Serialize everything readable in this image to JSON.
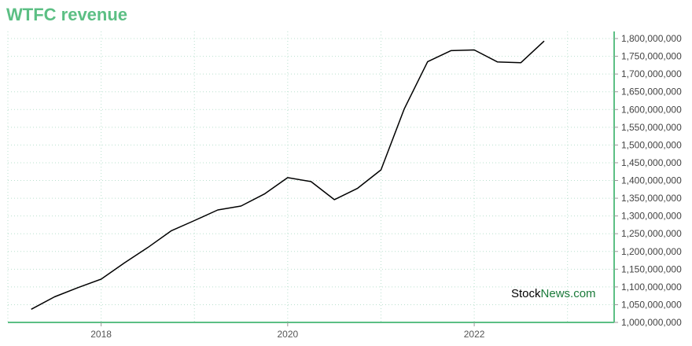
{
  "title": "WTFC revenue",
  "watermark": {
    "part1": "Stock",
    "part2": "News.com"
  },
  "colors": {
    "accent": "#5cbf84",
    "line": "#000000",
    "grid": "#b9e0ce"
  },
  "chart_data": {
    "type": "line",
    "title": "WTFC revenue",
    "xlabel": "",
    "ylabel": "",
    "grid": true,
    "y_axis_side": "right",
    "xlim": [
      2017.0,
      2023.5
    ],
    "ylim": [
      1000000000,
      1820000000
    ],
    "x_ticks": [
      {
        "value": 2018,
        "label": "2018"
      },
      {
        "value": 2020,
        "label": "2020"
      },
      {
        "value": 2022,
        "label": "2022"
      }
    ],
    "y_ticks": [
      {
        "value": 1000000000,
        "label": "1,000,000,000"
      },
      {
        "value": 1050000000,
        "label": "1,050,000,000"
      },
      {
        "value": 1100000000,
        "label": "1,100,000,000"
      },
      {
        "value": 1150000000,
        "label": "1,150,000,000"
      },
      {
        "value": 1200000000,
        "label": "1,200,000,000"
      },
      {
        "value": 1250000000,
        "label": "1,250,000,000"
      },
      {
        "value": 1300000000,
        "label": "1,300,000,000"
      },
      {
        "value": 1350000000,
        "label": "1,350,000,000"
      },
      {
        "value": 1400000000,
        "label": "1,400,000,000"
      },
      {
        "value": 1450000000,
        "label": "1,450,000,000"
      },
      {
        "value": 1500000000,
        "label": "1,500,000,000"
      },
      {
        "value": 1550000000,
        "label": "1,550,000,000"
      },
      {
        "value": 1600000000,
        "label": "1,600,000,000"
      },
      {
        "value": 1650000000,
        "label": "1,650,000,000"
      },
      {
        "value": 1700000000,
        "label": "1,700,000,000"
      },
      {
        "value": 1750000000,
        "label": "1,750,000,000"
      },
      {
        "value": 1800000000,
        "label": "1,800,000,000"
      }
    ],
    "x_grid": [
      2017.0,
      2018.0,
      2019.0,
      2020.0,
      2021.0,
      2022.0,
      2023.0
    ],
    "series": [
      {
        "name": "",
        "x": [
          2017.25,
          2017.5,
          2017.75,
          2018.0,
          2018.25,
          2018.5,
          2018.75,
          2019.0,
          2019.25,
          2019.5,
          2019.75,
          2020.0,
          2020.25,
          2020.5,
          2020.75,
          2021.0,
          2021.25,
          2021.5,
          2021.75,
          2022.0,
          2022.25,
          2022.5,
          2022.75
        ],
        "y": [
          1037000000,
          1072000000,
          1098000000,
          1122000000,
          1168000000,
          1211000000,
          1258000000,
          1287000000,
          1317000000,
          1328000000,
          1362000000,
          1408000000,
          1397000000,
          1346000000,
          1378000000,
          1430000000,
          1602000000,
          1735000000,
          1766000000,
          1768000000,
          1734000000,
          1732000000,
          1793000000
        ]
      }
    ]
  }
}
